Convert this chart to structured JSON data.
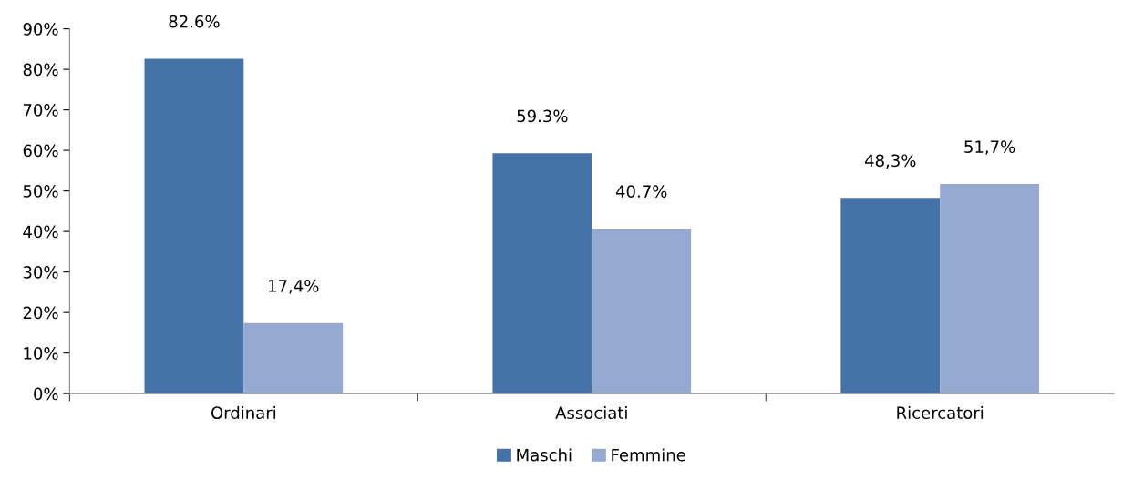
{
  "chart_data": {
    "type": "bar",
    "categories": [
      "Ordinari",
      "Associati",
      "Ricercatori"
    ],
    "series": [
      {
        "name": "Maschi",
        "color": "#4572a7",
        "values": [
          82.6,
          59.3,
          48.3
        ],
        "value_labels": [
          "82.6%",
          "59.3%",
          "48,3%"
        ]
      },
      {
        "name": "Femmine",
        "color": "#96aad1",
        "values": [
          17.4,
          40.7,
          51.7
        ],
        "value_labels": [
          "17,4%",
          "40.7%",
          "51,7%"
        ]
      }
    ],
    "ylim": [
      0,
      90
    ],
    "yticks": [
      {
        "value": 0,
        "label": "0%"
      },
      {
        "value": 10,
        "label": "10%"
      },
      {
        "value": 20,
        "label": "20%"
      },
      {
        "value": 30,
        "label": "30%"
      },
      {
        "value": 40,
        "label": "40%"
      },
      {
        "value": 50,
        "label": "50%"
      },
      {
        "value": 60,
        "label": "60%"
      },
      {
        "value": 70,
        "label": "70%"
      },
      {
        "value": 80,
        "label": "80%"
      },
      {
        "value": 90,
        "label": "90%"
      }
    ],
    "grid": false,
    "legend": "bottom"
  }
}
